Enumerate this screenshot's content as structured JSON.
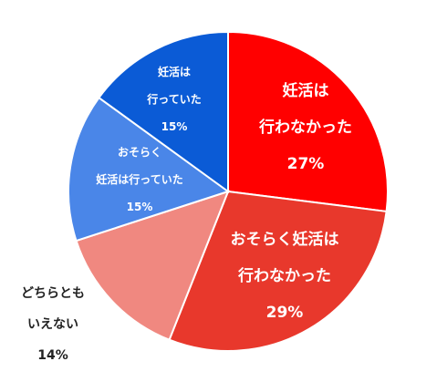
{
  "chart_data": {
    "type": "pie",
    "title": "",
    "legend": "none",
    "start_angle_deg": 0,
    "direction": "clockwise",
    "slices": [
      {
        "label_lines": [
          "妊活は",
          "行わなかった"
        ],
        "value_text": "27%",
        "value": 27,
        "color": "#ff0000",
        "label_color": "#ffffff"
      },
      {
        "label_lines": [
          "おそらく妊活は",
          "行わなかった"
        ],
        "value_text": "29%",
        "value": 29,
        "color": "#e8382c",
        "label_color": "#ffffff"
      },
      {
        "label_lines": [
          "どちらとも",
          "いえない"
        ],
        "value_text": "14%",
        "value": 14,
        "color": "#f08880",
        "label_color": "#222222"
      },
      {
        "label_lines": [
          "おそらく",
          "妊活は行っていた"
        ],
        "value_text": "15%",
        "value": 15,
        "color": "#4a86e8",
        "label_color": "#ffffff"
      },
      {
        "label_lines": [
          "妊活は",
          "行っていた"
        ],
        "value_text": "15%",
        "value": 15,
        "color": "#0b5bd6",
        "label_color": "#ffffff"
      }
    ]
  }
}
